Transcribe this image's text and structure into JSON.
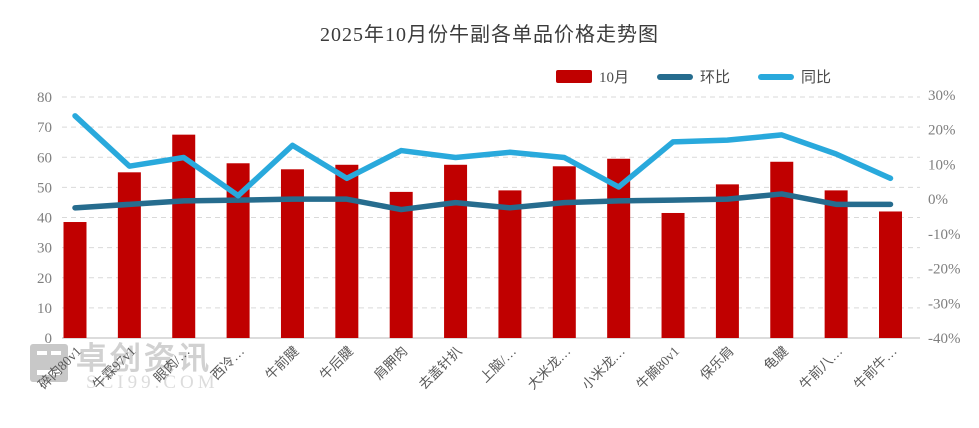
{
  "title": "2025年10月份牛副各单品价格走势图",
  "legend": [
    {
      "label": "10月",
      "color": "#c00000",
      "type": "bar"
    },
    {
      "label": "环比",
      "color": "#266c8e",
      "type": "line"
    },
    {
      "label": "同比",
      "color": "#29a9dc",
      "type": "line"
    }
  ],
  "watermark": {
    "name": "卓创资讯",
    "site": "SCI99.COM"
  },
  "colors": {
    "bar": "#c00000",
    "line_huanbi": "#266c8e",
    "line_tongbi": "#29a9dc",
    "grid": "#d9d9d9",
    "axis_line": "#c6c6c6",
    "axis_text": "#7f7f7f",
    "category_text": "#595959"
  },
  "chart_data": {
    "type": "bar",
    "title": "2025年10月份牛副各单品价格走势图",
    "categories": [
      "碎肉80v1",
      "牛霖97v1",
      "眼肉/…",
      "西冷…",
      "牛前腱",
      "牛后腱",
      "肩胛肉",
      "去盖针扒",
      "上脑/…",
      "大米龙…",
      "小米龙…",
      "牛腩80v1",
      "保乐肩",
      "龟腱",
      "牛前八…",
      "牛前牛…"
    ],
    "series": [
      {
        "name": "10月",
        "type": "bar",
        "axis": "left",
        "values": [
          38.5,
          55,
          67.5,
          58,
          56,
          57.5,
          48.5,
          57.5,
          49,
          57,
          59.5,
          41.5,
          51,
          58.5,
          49,
          42
        ]
      },
      {
        "name": "环比",
        "type": "line",
        "axis": "right",
        "unit": "%",
        "values": [
          -2.5,
          -1.5,
          -0.5,
          -0.3,
          0,
          0,
          -3,
          -1,
          -2.5,
          -1,
          -0.5,
          -0.3,
          0,
          1.5,
          -1.5,
          -1.5
        ]
      },
      {
        "name": "同比",
        "type": "line",
        "axis": "right",
        "unit": "%",
        "values": [
          24,
          9.5,
          12,
          1,
          15.5,
          6,
          14,
          12,
          13.5,
          12,
          3.5,
          16.5,
          17,
          18.5,
          13,
          6
        ]
      }
    ],
    "left_axis": {
      "min": 0,
      "max": 80,
      "step": 10,
      "tick_labels": [
        "0",
        "10",
        "20",
        "30",
        "40",
        "50",
        "60",
        "70",
        "80"
      ]
    },
    "right_axis": {
      "min": -40,
      "max": 30,
      "step": 10,
      "tick_labels": [
        "30%",
        "20%",
        "10%",
        "0%",
        "-10%",
        "-20%",
        "-30%",
        "-40%"
      ]
    },
    "grid": "horizontal dashed",
    "legend_position": "top-right"
  }
}
